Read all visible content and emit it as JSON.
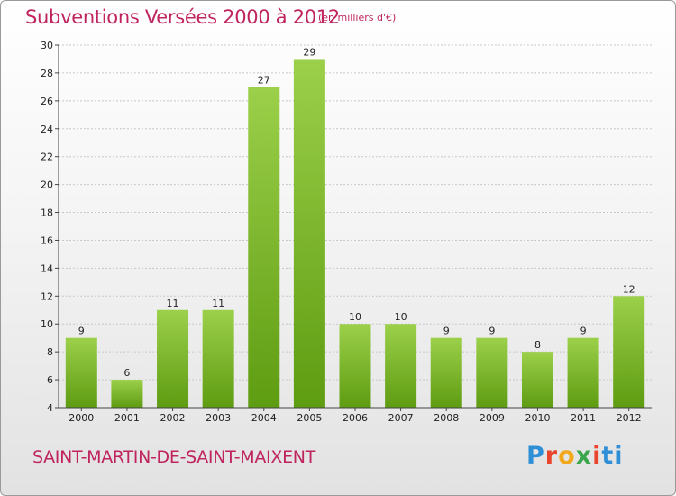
{
  "chart_data": {
    "type": "bar",
    "title": "Subventions Versées 2000 à 2012",
    "subtitle": "(en milliers d'€)",
    "categories": [
      "2000",
      "2001",
      "2002",
      "2003",
      "2004",
      "2005",
      "2006",
      "2007",
      "2008",
      "2009",
      "2010",
      "2011",
      "2012"
    ],
    "values": [
      9,
      6,
      11,
      11,
      27,
      29,
      10,
      10,
      9,
      9,
      8,
      9,
      12
    ],
    "ylim": [
      4,
      30
    ],
    "yticks": [
      4,
      6,
      8,
      10,
      12,
      14,
      16,
      18,
      20,
      22,
      24,
      26,
      28,
      30
    ],
    "xlabel": "",
    "ylabel": "",
    "colors": {
      "bar_top": "#9cd04a",
      "bar_bottom": "#5e9c12",
      "text": "#c0245f"
    }
  },
  "footer": {
    "commune": "SAINT-MARTIN-DE-SAINT-MAIXENT"
  },
  "logo": {
    "text": "Proxiti",
    "letters": [
      "P",
      "r",
      "o",
      "x",
      "i",
      "ti"
    ]
  }
}
